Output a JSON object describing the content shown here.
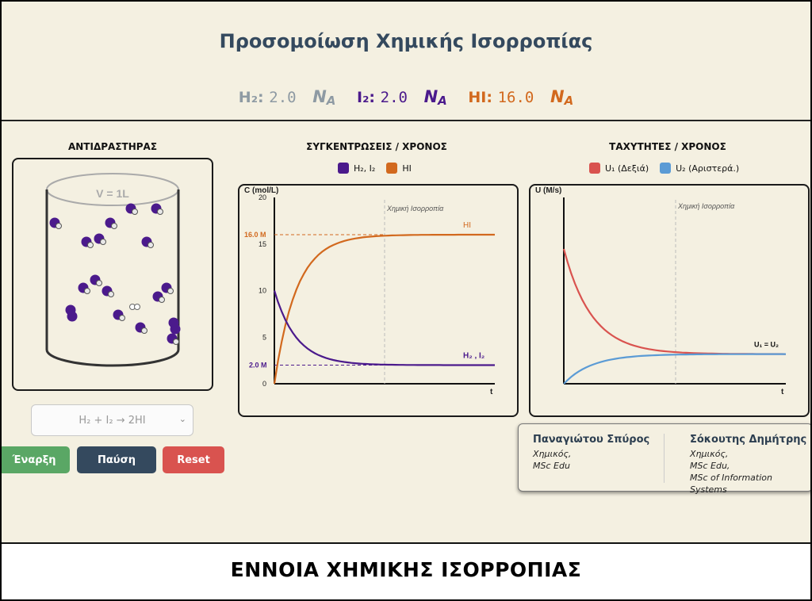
{
  "title": "Προσομοίωση Χημικής Ισορροπίας",
  "counts": {
    "h2_label": "H₂:",
    "h2_value": "2.0",
    "i2_label": "I₂:",
    "i2_value": "2.0",
    "hi_label": "HI:",
    "hi_value": "16.0",
    "unit": "NA"
  },
  "sections": {
    "reactor": "ΑΝΤΙΔΡΑΣΤΗΡΑΣ",
    "concentrations": "ΣΥΓΚΕΝΤΡΩΣΕΙΣ / ΧΡΟΝΟΣ",
    "rates": "ΤΑΧΥΤΗΤΕΣ / ΧΡΟΝΟΣ"
  },
  "reactor": {
    "volume_label": "V = 1L"
  },
  "colors": {
    "h2": "#8e9aa3",
    "i2": "#4b1a8c",
    "hi": "#d2691e",
    "u1": "#d9534f",
    "u2": "#5b9bd5",
    "title": "#34495e"
  },
  "chart_data": [
    {
      "type": "line",
      "legend": [
        "H₂, I₂",
        "HI"
      ],
      "ylabel": "C (mol/L)",
      "xlabel": "t",
      "yticks": [
        "20",
        "15",
        "10",
        "5",
        "0"
      ],
      "ylim": [
        0,
        20
      ],
      "annotation": "Χημική Ισορροπία",
      "series": [
        {
          "name": "HI",
          "start": 0,
          "end": 16,
          "label": "HI",
          "eq_label": "16.0 M"
        },
        {
          "name": "H₂ , I₂",
          "start": 10,
          "end": 2,
          "label": "H₂  ,  I₂",
          "eq_label": "2.0 M"
        }
      ]
    },
    {
      "type": "line",
      "legend": [
        "U₁ (Δεξιά)",
        "U₂ (Αριστερά.)"
      ],
      "ylabel": "U (M/s)",
      "xlabel": "t",
      "annotation": "Χημική Ισορροπία",
      "equal_label": "U₁ = U₂",
      "series": [
        {
          "name": "U₁ (Δεξιά)",
          "start": 1.0,
          "end": 0.22
        },
        {
          "name": "U₂ (Αριστερά.)",
          "start": 0.0,
          "end": 0.22
        }
      ]
    }
  ],
  "controls": {
    "reaction": "H₂ + I₂ → 2HI",
    "start": "Έναρξη",
    "pause": "Παύση",
    "reset": "Reset"
  },
  "authors": [
    {
      "name": "Παναγιώτου Σπύρος",
      "roles": [
        "Χημικός,",
        "MSc Edu"
      ]
    },
    {
      "name": "Σόκουτης Δημήτρης",
      "roles": [
        "Χημικός,",
        "MSc Edu,",
        "MSc of Information Systems"
      ]
    }
  ],
  "footer": "ΕΝΝΟΙΑ ΧΗΜΙΚΗΣ ΙΣΟΡΡΟΠΙΑΣ"
}
